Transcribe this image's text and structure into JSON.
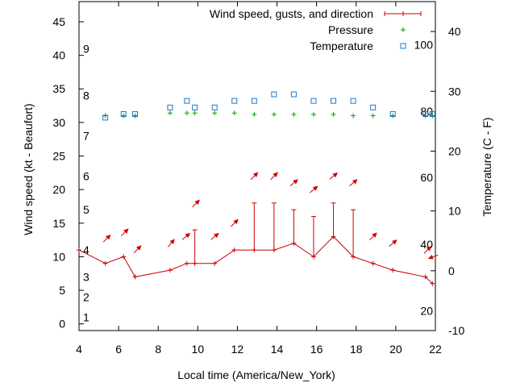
{
  "chart_data": {
    "type": "line",
    "xlabel": "Local time (America/New_York)",
    "ylabel": "Wind speed (kt - Beaufort)",
    "y2label": "Temperature (C - F)",
    "xlim": [
      4,
      22
    ],
    "ylim": [
      -1,
      48
    ],
    "y2lim": [
      -10,
      45
    ],
    "grid": false,
    "legend_position": "top-right",
    "x_ticks": [
      4,
      6,
      8,
      10,
      12,
      14,
      16,
      18,
      20,
      22
    ],
    "x_tick_labels": [
      "4",
      "6",
      "8",
      "10",
      "12",
      "14",
      "16",
      "18",
      "20",
      "22"
    ],
    "y_ticks": [
      0,
      5,
      10,
      15,
      20,
      25,
      30,
      35,
      40,
      45
    ],
    "y_tick_labels": [
      "0",
      "5",
      "10",
      "15",
      "20",
      "25",
      "30",
      "35",
      "40",
      "45"
    ],
    "y2_ticks": [
      -10,
      0,
      10,
      20,
      30,
      40
    ],
    "y2_tick_labels": [
      "-10",
      "0",
      "10",
      "20",
      "30",
      "40"
    ],
    "beaufort_scale": [
      {
        "label": "1",
        "y": 1
      },
      {
        "label": "2",
        "y": 4
      },
      {
        "label": "3",
        "y": 7
      },
      {
        "label": "4",
        "y": 11
      },
      {
        "label": "5",
        "y": 17
      },
      {
        "label": "6",
        "y": 22
      },
      {
        "label": "7",
        "y": 28
      },
      {
        "label": "8",
        "y": 34
      },
      {
        "label": "9",
        "y": 41
      }
    ],
    "fahrenheit_scale": [
      {
        "label": "20",
        "y2": -6.7
      },
      {
        "label": "40",
        "y2": 4.4
      },
      {
        "label": "60",
        "y2": 15.6
      },
      {
        "label": "80",
        "y2": 26.7
      },
      {
        "label": "100",
        "y2": 37.8
      }
    ],
    "series": [
      {
        "name": "Wind speed, gusts, and direction",
        "color": "#cc0000",
        "x": [
          4.0,
          5.33,
          6.25,
          6.83,
          8.6,
          9.45,
          9.85,
          10.85,
          11.85,
          12.85,
          13.85,
          14.85,
          15.85,
          16.85,
          17.85,
          18.85,
          19.85,
          21.5,
          21.85
        ],
        "y": [
          11,
          9,
          10,
          7,
          8,
          9,
          9,
          9,
          11,
          11,
          11,
          12,
          10,
          13,
          10,
          9,
          8,
          7,
          6
        ],
        "gusts": [
          null,
          null,
          null,
          null,
          null,
          null,
          14,
          null,
          null,
          18,
          18,
          17,
          16,
          18,
          17,
          null,
          null,
          null,
          null
        ]
      },
      {
        "name": "Pressure",
        "color": "#00a000",
        "x": [
          5.33,
          6.25,
          6.83,
          8.6,
          9.45,
          9.85,
          10.85,
          11.85,
          12.85,
          13.85,
          14.85,
          15.85,
          16.85,
          17.85,
          18.85,
          19.85,
          21.5,
          21.85
        ],
        "y": [
          31,
          31,
          31,
          31.4,
          31.4,
          31.4,
          31.4,
          31.4,
          31.2,
          31.2,
          31.2,
          31.2,
          31.2,
          31.0,
          31.0,
          31.0,
          31.0,
          31.0
        ]
      },
      {
        "name": "Temperature",
        "color": "#1f78c8",
        "x": [
          5.33,
          6.25,
          6.83,
          8.6,
          9.45,
          9.85,
          10.85,
          11.85,
          12.85,
          13.85,
          14.85,
          15.85,
          16.85,
          17.85,
          18.85,
          19.85,
          21.5,
          21.85
        ],
        "y2": [
          25.6,
          26.2,
          26.2,
          27.3,
          28.4,
          27.3,
          27.3,
          28.4,
          28.4,
          29.5,
          29.5,
          28.4,
          28.4,
          28.4,
          27.3,
          26.2,
          26.2,
          26.2
        ]
      }
    ],
    "wind_arrows": [
      {
        "x": 5.4,
        "y": 12.7,
        "direction_deg": 45
      },
      {
        "x": 6.3,
        "y": 13.6,
        "direction_deg": 45
      },
      {
        "x": 6.95,
        "y": 11.1,
        "direction_deg": 45
      },
      {
        "x": 8.65,
        "y": 12.0,
        "direction_deg": 50
      },
      {
        "x": 9.4,
        "y": 13.0,
        "direction_deg": 40
      },
      {
        "x": 9.9,
        "y": 17.9,
        "direction_deg": 45
      },
      {
        "x": 10.85,
        "y": 13.0,
        "direction_deg": 40
      },
      {
        "x": 11.85,
        "y": 15.0,
        "direction_deg": 45
      },
      {
        "x": 12.85,
        "y": 22.0,
        "direction_deg": 45
      },
      {
        "x": 13.85,
        "y": 22.0,
        "direction_deg": 45
      },
      {
        "x": 14.85,
        "y": 21.0,
        "direction_deg": 40
      },
      {
        "x": 15.85,
        "y": 20.0,
        "direction_deg": 40
      },
      {
        "x": 16.85,
        "y": 22.0,
        "direction_deg": 40
      },
      {
        "x": 17.85,
        "y": 21.0,
        "direction_deg": 40
      },
      {
        "x": 18.85,
        "y": 13.0,
        "direction_deg": 45
      },
      {
        "x": 19.85,
        "y": 12.0,
        "direction_deg": 40
      },
      {
        "x": 21.6,
        "y": 11.0,
        "direction_deg": 45
      },
      {
        "x": 21.9,
        "y": 10.0,
        "direction_deg": 200
      }
    ]
  }
}
